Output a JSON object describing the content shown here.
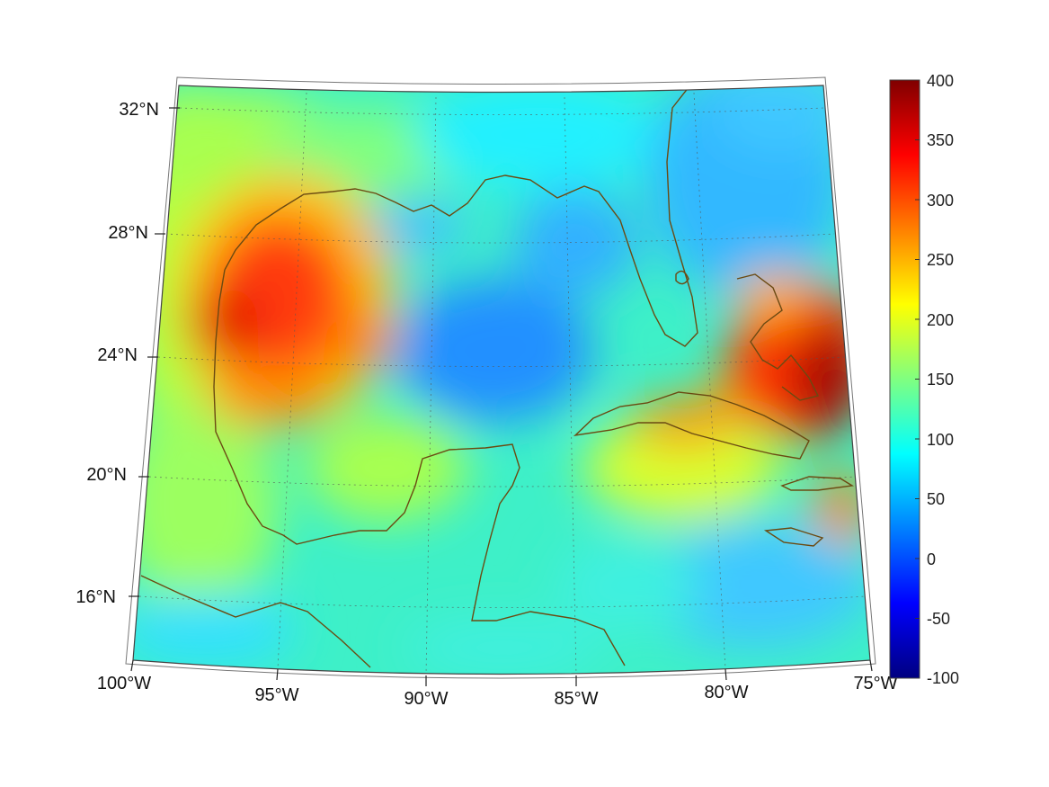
{
  "map": {
    "projection": "conic",
    "extent": {
      "lon": [
        -100,
        -75
      ],
      "lat": [
        14,
        33
      ]
    },
    "grid": true,
    "field_colormap": "jet",
    "lon_labels": [
      "100°W",
      "95°W",
      "90°W",
      "85°W",
      "80°W",
      "75°W"
    ],
    "lat_labels": [
      "16°N",
      "20°N",
      "24°N",
      "28°N",
      "32°N"
    ],
    "coastline_color": "#6b4a12"
  },
  "colorbar": {
    "range": [
      -100,
      400
    ],
    "tick_labels": [
      "400",
      "350",
      "300",
      "250",
      "200",
      "150",
      "100",
      "50",
      "0",
      "-50",
      "-100"
    ],
    "colors": [
      "#800000",
      "#ff0000",
      "#ff8000",
      "#ffff00",
      "#80ff80",
      "#00ffff",
      "#0080ff",
      "#0000ff",
      "#000080"
    ]
  },
  "field_features": [
    {
      "name": "western Gulf maximum",
      "lon": -95.5,
      "lat": 25.5,
      "value": 300
    },
    {
      "name": "central Gulf minimum",
      "lon": -88.0,
      "lat": 24.0,
      "value": 40
    },
    {
      "name": "Bahamas maximum",
      "lon": -76.5,
      "lat": 23.5,
      "value": 380
    },
    {
      "name": "Cuba band",
      "lon": -81.0,
      "lat": 22.0,
      "value": 240
    }
  ]
}
